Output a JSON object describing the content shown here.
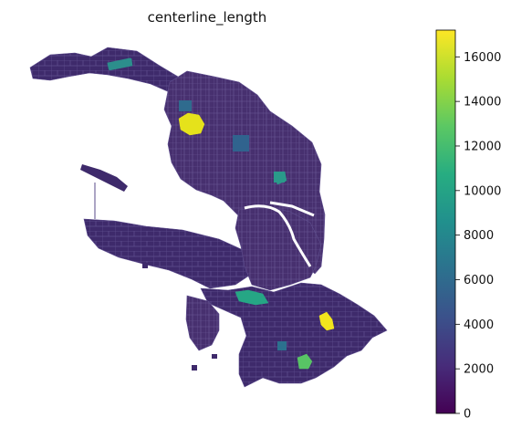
{
  "title": "centerline_length",
  "colorbar": {
    "cmap": "viridis",
    "min": 0,
    "max": 17200,
    "ticks": [
      {
        "value": 0,
        "label": "0"
      },
      {
        "value": 2000,
        "label": "2000"
      },
      {
        "value": 4000,
        "label": "4000"
      },
      {
        "value": 6000,
        "label": "6000"
      },
      {
        "value": 8000,
        "label": "8000"
      },
      {
        "value": 10000,
        "label": "10000"
      },
      {
        "value": 12000,
        "label": "12000"
      },
      {
        "value": 14000,
        "label": "14000"
      },
      {
        "value": 16000,
        "label": "16000"
      }
    ],
    "stops": [
      "#440154",
      "#472c7a",
      "#3b518b",
      "#2c718e",
      "#21908d",
      "#27ad81",
      "#5cc863",
      "#aadc32",
      "#fde725"
    ]
  },
  "map": {
    "base_color": "#3f2a6c",
    "boundary_color": "#6a5a95",
    "water_color": "#ffffff",
    "highlights": [
      {
        "id": "north-bay-district",
        "value": 16800,
        "color": "#e5e21b"
      },
      {
        "id": "south-east-district",
        "value": 16900,
        "color": "#f1e51d"
      },
      {
        "id": "south-park-area",
        "value": 9800,
        "color": "#26a685"
      },
      {
        "id": "south-small-area",
        "value": 12700,
        "color": "#58c465"
      },
      {
        "id": "north-center-area",
        "value": 9000,
        "color": "#2a9a8a"
      },
      {
        "id": "northwest-strip",
        "value": 8500,
        "color": "#2c8e8c"
      }
    ]
  }
}
